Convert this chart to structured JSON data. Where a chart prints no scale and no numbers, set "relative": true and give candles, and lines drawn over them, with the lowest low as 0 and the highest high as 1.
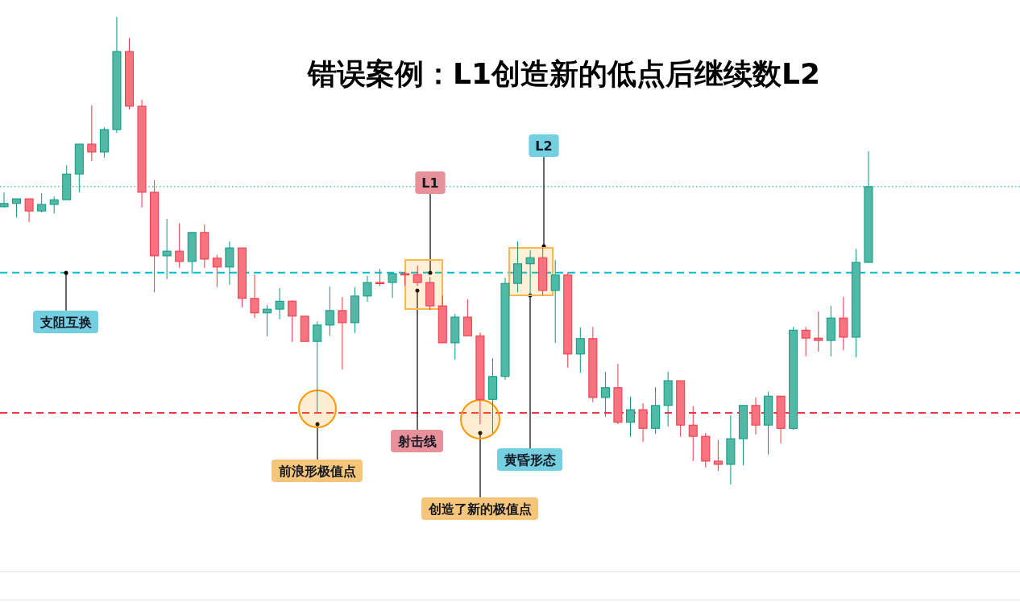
{
  "chart_data": {
    "type": "candlestick",
    "title": "错误案例：L1创造新的低点后继续数L2",
    "relative": true,
    "categories": [
      null,
      null,
      null,
      null,
      null,
      null,
      null,
      null,
      null,
      null,
      null,
      null,
      null,
      null,
      null,
      null,
      null,
      null,
      null,
      null,
      null,
      null,
      null,
      null,
      null,
      null,
      null,
      null,
      null,
      null,
      null,
      null,
      null,
      null,
      null,
      null,
      null,
      null,
      null,
      null,
      null,
      null,
      null,
      null,
      null,
      null,
      null,
      null,
      null,
      null,
      null,
      null,
      null,
      null,
      null,
      null,
      null,
      null,
      null,
      null,
      null,
      null,
      null,
      null,
      null,
      null,
      null,
      null,
      null,
      null
    ],
    "ohlc": [
      [
        0.594,
        0.625,
        0.592,
        0.601
      ],
      [
        0.601,
        0.611,
        0.571,
        0.611
      ],
      [
        0.611,
        0.611,
        0.561,
        0.585
      ],
      [
        0.585,
        0.623,
        0.582,
        0.599
      ],
      [
        0.599,
        0.616,
        0.58,
        0.609
      ],
      [
        0.609,
        0.683,
        0.609,
        0.664
      ],
      [
        0.664,
        0.728,
        0.625,
        0.728
      ],
      [
        0.728,
        0.811,
        0.692,
        0.711
      ],
      [
        0.711,
        0.764,
        0.699,
        0.759
      ],
      [
        0.759,
        1,
        0.752,
        0.926
      ],
      [
        0.926,
        0.955,
        0.802,
        0.809
      ],
      [
        0.809,
        0.823,
        0.592,
        0.625
      ],
      [
        0.625,
        0.651,
        0.411,
        0.489
      ],
      [
        0.489,
        0.568,
        0.439,
        0.499
      ],
      [
        0.499,
        0.559,
        0.463,
        0.477
      ],
      [
        0.477,
        0.539,
        0.451,
        0.539
      ],
      [
        0.539,
        0.556,
        0.463,
        0.482
      ],
      [
        0.484,
        0.491,
        0.422,
        0.465
      ],
      [
        0.465,
        0.52,
        0.427,
        0.506
      ],
      [
        0.506,
        0.506,
        0.379,
        0.398
      ],
      [
        0.398,
        0.449,
        0.356,
        0.367
      ],
      [
        0.367,
        0.384,
        0.317,
        0.375
      ],
      [
        0.375,
        0.42,
        0.353,
        0.392
      ],
      [
        0.392,
        0.394,
        0.305,
        0.36
      ],
      [
        0.36,
        0.36,
        0.306,
        0.306
      ],
      [
        0.306,
        0.349,
        0.155,
        0.341
      ],
      [
        0.341,
        0.423,
        0.318,
        0.372
      ],
      [
        0.372,
        0.401,
        0.246,
        0.346
      ],
      [
        0.346,
        0.422,
        0.324,
        0.403
      ],
      [
        0.403,
        0.446,
        0.391,
        0.432
      ],
      [
        0.432,
        0.461,
        0.425,
        0.43
      ],
      [
        0.432,
        0.451,
        0.399,
        0.451
      ],
      [
        0.451,
        0.454,
        0.425,
        0.448
      ],
      [
        0.449,
        0.468,
        0.425,
        0.432
      ],
      [
        0.432,
        0.444,
        0.373,
        0.382
      ],
      [
        0.382,
        0.404,
        0.303,
        0.303
      ],
      [
        0.303,
        0.365,
        0.267,
        0.358
      ],
      [
        0.358,
        0.396,
        0.318,
        0.318
      ],
      [
        0.318,
        0.325,
        0.129,
        0.182
      ],
      [
        0.182,
        0.27,
        0.11,
        0.231
      ],
      [
        0.231,
        0.442,
        0.224,
        0.43
      ],
      [
        0.43,
        0.52,
        0.411,
        0.472
      ],
      [
        0.472,
        0.501,
        0.404,
        0.485
      ],
      [
        0.485,
        0.506,
        0.404,
        0.415
      ],
      [
        0.415,
        0.48,
        0.303,
        0.448
      ],
      [
        0.448,
        0.454,
        0.25,
        0.279
      ],
      [
        0.279,
        0.336,
        0.239,
        0.312
      ],
      [
        0.312,
        0.337,
        0.176,
        0.186
      ],
      [
        0.186,
        0.241,
        0.145,
        0.207
      ],
      [
        0.207,
        0.258,
        0.129,
        0.133
      ],
      [
        0.133,
        0.188,
        0.102,
        0.16
      ],
      [
        0.16,
        0.174,
        0.091,
        0.12
      ],
      [
        0.12,
        0.208,
        0.108,
        0.169
      ],
      [
        0.169,
        0.241,
        0.124,
        0.222
      ],
      [
        0.222,
        0.222,
        0.102,
        0.127
      ],
      [
        0.127,
        0.167,
        0.05,
        0.103
      ],
      [
        0.103,
        0.11,
        0.036,
        0.05
      ],
      [
        0.05,
        0.095,
        0.029,
        0.043
      ],
      [
        0.043,
        0.148,
        0,
        0.098
      ],
      [
        0.098,
        0.169,
        0.041,
        0.169
      ],
      [
        0.169,
        0.186,
        0.107,
        0.127
      ],
      [
        0.127,
        0.198,
        0.064,
        0.189
      ],
      [
        0.189,
        0.189,
        0.088,
        0.12
      ],
      [
        0.12,
        0.337,
        0.117,
        0.33
      ],
      [
        0.33,
        0.337,
        0.274,
        0.313
      ],
      [
        0.313,
        0.37,
        0.284,
        0.308
      ],
      [
        0.308,
        0.382,
        0.274,
        0.356
      ],
      [
        0.356,
        0.401,
        0.287,
        0.315
      ],
      [
        0.315,
        0.504,
        0.272,
        0.475
      ],
      [
        0.475,
        0.713,
        0.475,
        0.637
      ]
    ],
    "ref_lines": [
      {
        "axis": "y",
        "value": 0.637,
        "color": "#089981",
        "line_style": "dotted"
      },
      {
        "axis": "y",
        "value": 0.453,
        "color": "#00bcd4",
        "line_style": "dashed"
      },
      {
        "axis": "y",
        "value": 0.153,
        "color": "#f23645",
        "line_style": "dashed"
      }
    ],
    "annotations": [
      "支阻互换",
      "L1",
      "射击线",
      "L2",
      "黄昏形态",
      "前浪形极值点",
      "创造了新的极值点"
    ]
  }
}
